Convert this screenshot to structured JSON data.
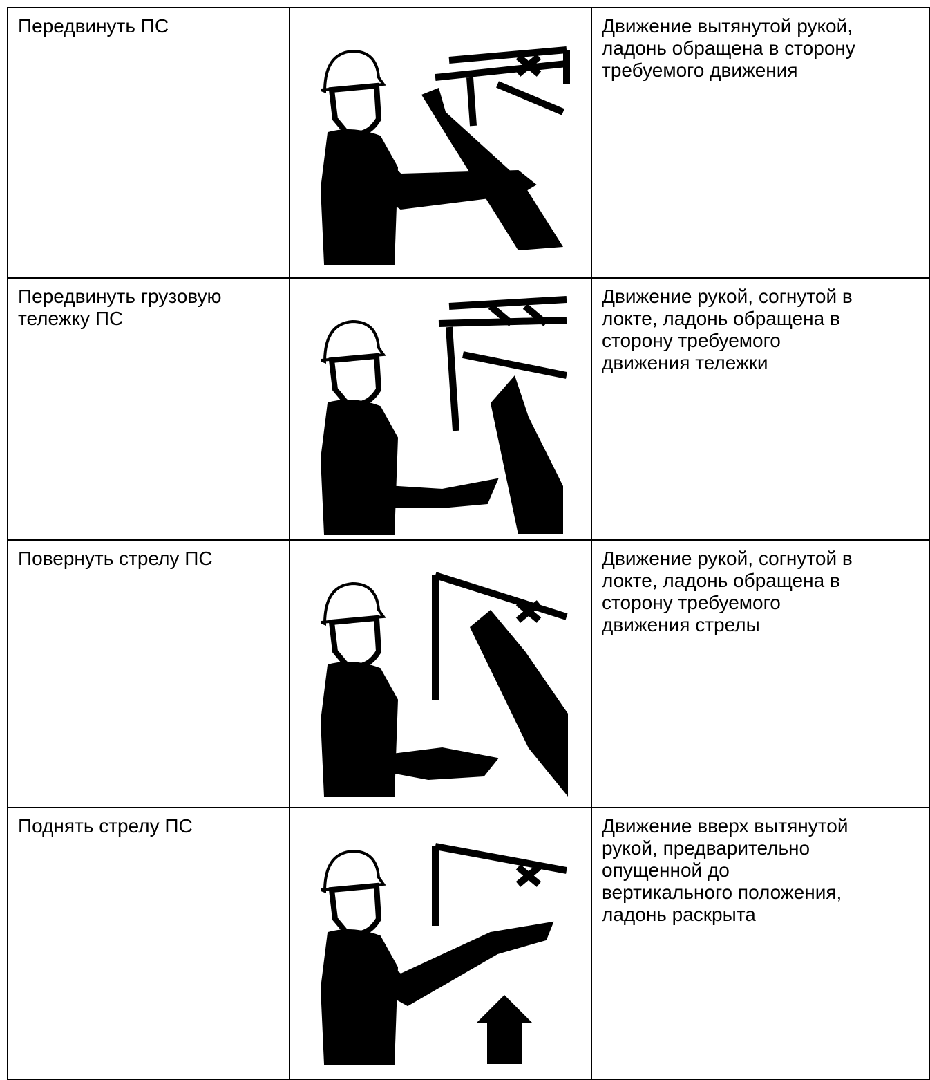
{
  "table": {
    "rows": [
      {
        "signal": [
          "Передвинуть ПС"
        ],
        "description": [
          "Движение вытянутой рукой,",
          "ладонь обращена в сторону",
          "требуемого движения"
        ]
      },
      {
        "signal": [
          "Передвинуть грузовую",
          "тележку ПС"
        ],
        "description": [
          "Движение рукой, согнутой в",
          "локте, ладонь обращена в",
          "сторону требуемого",
          "движения тележки"
        ]
      },
      {
        "signal": [
          "Повернуть стрелу ПС"
        ],
        "description": [
          "Движение рукой, согнутой в",
          "локте, ладонь обращена в",
          "сторону требуемого",
          "движения стрелы"
        ]
      },
      {
        "signal": [
          "Поднять стрелу ПС"
        ],
        "description": [
          "Движение вверх вытянутой",
          "рукой, предварительно",
          "опущенной до",
          "вертикального положения,",
          "ладонь раскрыта"
        ]
      }
    ]
  }
}
